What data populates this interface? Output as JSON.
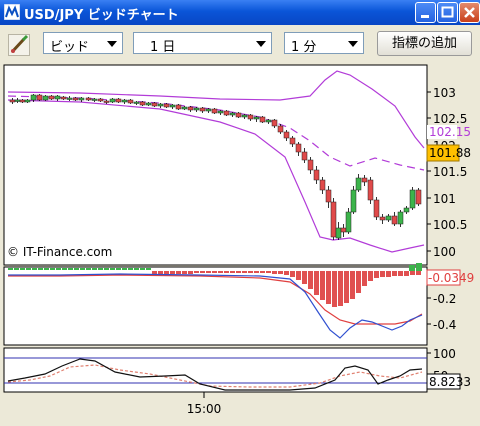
{
  "window": {
    "title": "USD/JPY ビッドチャート",
    "controls": [
      "minimize-icon",
      "maximize-icon",
      "close-icon"
    ]
  },
  "toolbar": {
    "price_type": "ビッド",
    "period": "1 日",
    "interval": "1 分",
    "add_indicator_label": "指標の追加"
  },
  "main_chart": {
    "y_ticks": [
      "103",
      "102.5",
      "102",
      "101.5",
      "101",
      "100.5",
      "100"
    ],
    "upper_band_label": "102.15",
    "current_price": "101.88",
    "copyright": "© IT-Finance.com"
  },
  "macd_panel": {
    "y_ticks": [
      "-0.2",
      "-0.4"
    ],
    "current_value": "-0.0349"
  },
  "oscillator_panel": {
    "y_ticks": [
      "100",
      "50"
    ],
    "current_value": "8.8233"
  },
  "x_axis": {
    "labels": [
      "15:00"
    ]
  },
  "colors": {
    "title_bar": "#0a55d8",
    "bull_candle": "#3cb44b",
    "bear_candle": "#e04a4a",
    "band": "#b23cd8",
    "price_box": "#ffc000",
    "macd_line": "#3050d0",
    "signal_line": "#e04040",
    "histogram": "#e05050"
  }
}
